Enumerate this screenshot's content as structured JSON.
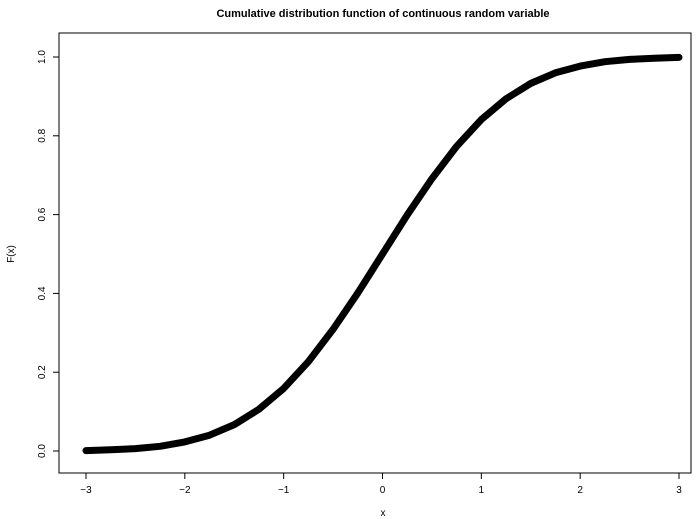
{
  "chart_data": {
    "type": "line",
    "title": "Cumulative distribution function of continuous random variable",
    "xlabel": "x",
    "ylabel": "F(x)",
    "xlim": [
      -3,
      3
    ],
    "ylim": [
      0,
      1
    ],
    "x_ticks": [
      "−3",
      "−2",
      "−1",
      "0",
      "1",
      "2",
      "3"
    ],
    "y_ticks": [
      "0.0",
      "0.2",
      "0.4",
      "0.6",
      "0.8",
      "1.0"
    ],
    "grid": false,
    "series": [
      {
        "x": [
          -3.0,
          -2.75,
          -2.5,
          -2.25,
          -2.0,
          -1.75,
          -1.5,
          -1.25,
          -1.0,
          -0.75,
          -0.5,
          -0.25,
          0.0,
          0.25,
          0.5,
          0.75,
          1.0,
          1.25,
          1.5,
          1.75,
          2.0,
          2.25,
          2.5,
          2.75,
          3.0
        ],
        "y": [
          0.001,
          0.003,
          0.006,
          0.012,
          0.023,
          0.04,
          0.067,
          0.106,
          0.159,
          0.227,
          0.309,
          0.401,
          0.5,
          0.599,
          0.691,
          0.773,
          0.841,
          0.894,
          0.933,
          0.96,
          0.977,
          0.988,
          0.994,
          0.997,
          0.999
        ],
        "color": "#000000"
      }
    ]
  }
}
